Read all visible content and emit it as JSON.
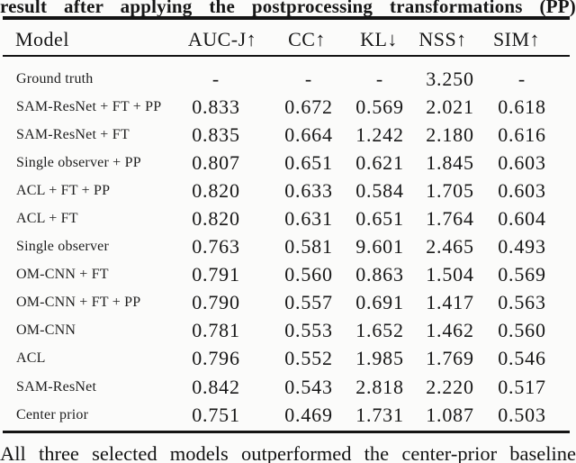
{
  "caption_top": "result after applying the postprocessing transformations (PP)",
  "caption_bottom": "All three selected models outperformed the center-prior baseline",
  "table": {
    "columns": [
      "Model",
      "AUC-J↑",
      "CC↑",
      "KL↓",
      "NSS↑",
      "SIM↑"
    ],
    "rows": [
      {
        "model": "Ground truth",
        "values": [
          "-",
          "-",
          "-",
          "3.250",
          "-"
        ]
      },
      {
        "model": "SAM-ResNet + FT + PP",
        "values": [
          "0.833",
          "0.672",
          "0.569",
          "2.021",
          "0.618"
        ]
      },
      {
        "model": "SAM-ResNet + FT",
        "values": [
          "0.835",
          "0.664",
          "1.242",
          "2.180",
          "0.616"
        ]
      },
      {
        "model": "Single observer + PP",
        "values": [
          "0.807",
          "0.651",
          "0.621",
          "1.845",
          "0.603"
        ]
      },
      {
        "model": "ACL + FT + PP",
        "values": [
          "0.820",
          "0.633",
          "0.584",
          "1.705",
          "0.603"
        ]
      },
      {
        "model": "ACL + FT",
        "values": [
          "0.820",
          "0.631",
          "0.651",
          "1.764",
          "0.604"
        ]
      },
      {
        "model": "Single observer",
        "values": [
          "0.763",
          "0.581",
          "9.601",
          "2.465",
          "0.493"
        ]
      },
      {
        "model": "OM-CNN + FT",
        "values": [
          "0.791",
          "0.560",
          "0.863",
          "1.504",
          "0.569"
        ]
      },
      {
        "model": "OM-CNN + FT + PP",
        "values": [
          "0.790",
          "0.557",
          "0.691",
          "1.417",
          "0.563"
        ]
      },
      {
        "model": "OM-CNN",
        "values": [
          "0.781",
          "0.553",
          "1.652",
          "1.462",
          "0.560"
        ]
      },
      {
        "model": "ACL",
        "values": [
          "0.796",
          "0.552",
          "1.985",
          "1.769",
          "0.546"
        ]
      },
      {
        "model": "SAM-ResNet",
        "values": [
          "0.842",
          "0.543",
          "2.818",
          "2.220",
          "0.517"
        ]
      },
      {
        "model": "Center prior",
        "values": [
          "0.751",
          "0.469",
          "1.731",
          "1.087",
          "0.503"
        ]
      }
    ]
  }
}
